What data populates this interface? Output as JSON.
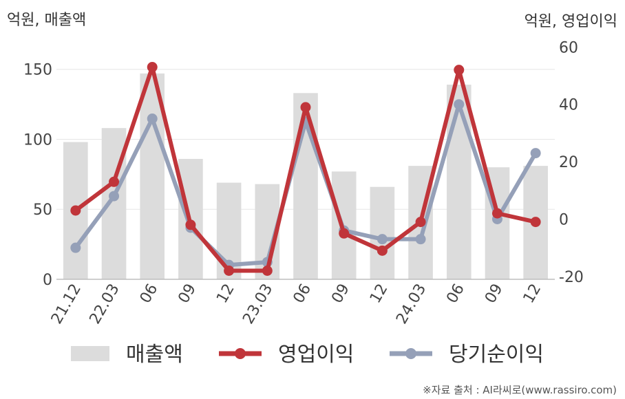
{
  "chart_data": {
    "type": "bar+line",
    "y_left_label": "억원, 매출액",
    "y_right_label": "억원, 영업이익",
    "categories": [
      "21.12",
      "22.03",
      "06",
      "09",
      "12",
      "23.03",
      "06",
      "09",
      "12",
      "24.03",
      "06",
      "09",
      "12"
    ],
    "y_left_ticks": [
      "0",
      "50",
      "100",
      "150"
    ],
    "y_left_lim": [
      0,
      170
    ],
    "y_right_ticks": [
      "-20",
      "0",
      "20",
      "40",
      "60"
    ],
    "y_right_lim": [
      -21,
      62
    ],
    "series": [
      {
        "name": "매출액",
        "type": "bar",
        "axis": "left",
        "color": "#dcdcdc",
        "values": [
          98,
          108,
          147,
          86,
          69,
          68,
          133,
          77,
          66,
          81,
          139,
          80,
          81
        ]
      },
      {
        "name": "영업이익",
        "type": "line",
        "axis": "right",
        "color": "#c0353a",
        "values": [
          3,
          13,
          53,
          -2,
          -18,
          -18,
          39,
          -5,
          -11,
          -1,
          52,
          2,
          -1
        ]
      },
      {
        "name": "당기순이익",
        "type": "line",
        "axis": "right",
        "color": "#95a0b8",
        "values": [
          -10,
          8,
          35,
          -3,
          -16,
          -15,
          34,
          -4,
          -7,
          -7,
          40,
          0,
          23
        ]
      }
    ],
    "grid": "horizontal",
    "legend_position": "bottom"
  },
  "source": "※자료 출처 : AI라씨로(www.rassiro.com)"
}
